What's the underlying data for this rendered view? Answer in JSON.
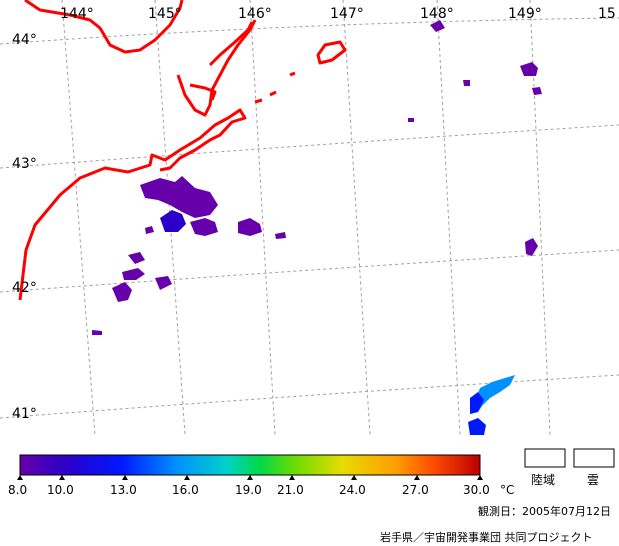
{
  "map": {
    "longitude_labels": [
      "144°",
      "145°",
      "146°",
      "147°",
      "148°",
      "149°",
      "15"
    ],
    "latitude_labels": [
      "44°",
      "43°",
      "42°",
      "41°"
    ]
  },
  "legend": {
    "colors": [
      "#6600aa",
      "#2a00c8",
      "#0018ff",
      "#0090ff",
      "#00d2c8",
      "#00d84a",
      "#6edc00",
      "#e6dc00",
      "#ff9c00",
      "#ff4a00",
      "#ba0000"
    ],
    "ticks": [
      "8.0",
      "10.0",
      "13.0",
      "16.0",
      "19.0",
      "21.0",
      "24.0",
      "27.0",
      "30.0"
    ],
    "unit": "°C",
    "land_label": "陸域",
    "cloud_label": "雲"
  },
  "footer": {
    "observation": "観測日：2005年07月12日",
    "credit": "岩手県／宇宙開発事業団  共同プロジェクト"
  },
  "colors": {
    "coastline": "#ff0000",
    "grid": "#a0a0a0"
  }
}
